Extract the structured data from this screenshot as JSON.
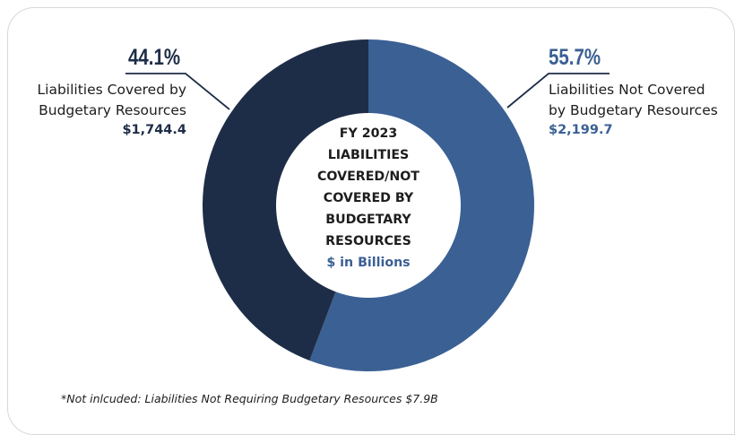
{
  "chart_data": {
    "type": "pie",
    "donut": true,
    "title": "FY 2023 LIABILITIES COVERED/NOT COVERED BY BUDGETARY RESOURCES",
    "title_lines": [
      "FY 2023",
      "LIABILITIES",
      "COVERED/NOT",
      "COVERED BY",
      "BUDGETARY",
      "RESOURCES"
    ],
    "subtitle": "$ in Billions",
    "slices": [
      {
        "name": "Liabilities Not Covered by Budgetary Resources",
        "label_lines": [
          "Liabilities Not Covered",
          "by Budgetary Resources"
        ],
        "percent_label": "55.7%",
        "percent": 55.7,
        "value": 2199.7,
        "value_label": "$2,199.7",
        "color": "#3b6094"
      },
      {
        "name": "Liabilities Covered by Budgetary Resources",
        "label_lines": [
          "Liabilities Covered by",
          "Budgetary Resources"
        ],
        "percent_label": "44.1%",
        "percent": 44.1,
        "value": 1744.4,
        "value_label": "$1,744.4",
        "color": "#1e2d47"
      }
    ],
    "footnote": "*Not inlcuded: Liabilities Not Requiring Budgetary Resources $7.9B"
  },
  "colors": {
    "covered": "#1e2d47",
    "not_covered": "#3b6094",
    "leader_line": "#1e2d47",
    "card_border": "#d5d8dc"
  }
}
